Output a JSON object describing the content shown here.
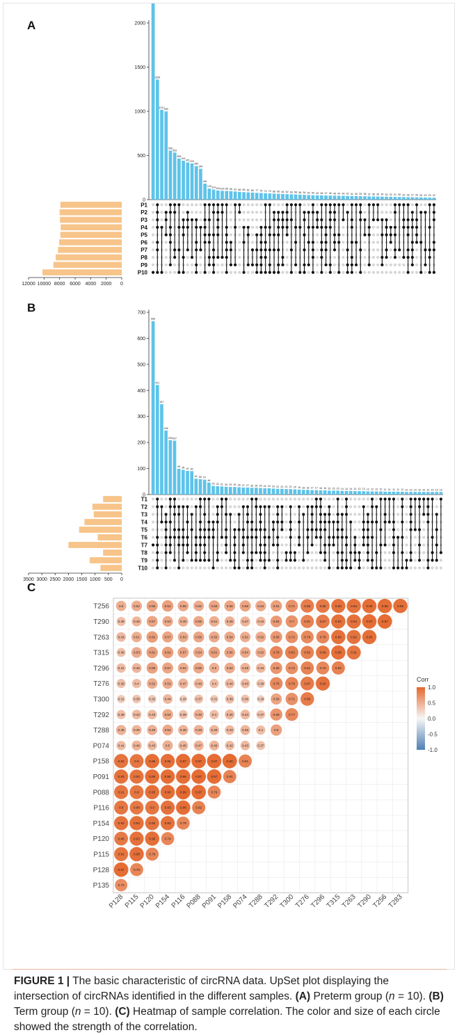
{
  "figure": {
    "panels": [
      "A",
      "B",
      "C"
    ]
  },
  "caption": {
    "label": "FIGURE 1 |",
    "text1": " The basic characteristic of circRNA data. UpSet plot displaying the intersection of circRNAs identified in the different samples. ",
    "a_label": "(A)",
    "text2": " Preterm group (",
    "n_a": "n",
    "text3": " = 10). ",
    "b_label": "(B)",
    "text4": " Term group (",
    "n_b": "n",
    "text5": " = 10). ",
    "c_label": "(C)",
    "text6": " Heatmap of sample correlation. The color and size of each circle showed the strength of the correlation."
  },
  "colors": {
    "bar": "#5ec3ea",
    "setbar": "#f7c48a",
    "dot_on": "#111111",
    "dot_off": "#d6d6d6",
    "corr_high": "#e4682e",
    "corr_mid": "#f6f6f6",
    "corr_low": "#4d7fb3"
  },
  "chart_data": [
    {
      "type": "bar",
      "panel": "A",
      "subtype": "upset",
      "ylim": [
        0,
        2000
      ],
      "yticks": [
        0,
        500,
        1000,
        1500,
        2000
      ],
      "values": [
        2444,
        1359,
        1017,
        999,
        555,
        533,
        465,
        441,
        421,
        410,
        380,
        349,
        181,
        125,
        114,
        104,
        100,
        98,
        96,
        92,
        88,
        85,
        82,
        80,
        77,
        75,
        72,
        70,
        68,
        66,
        64,
        62,
        60,
        58,
        56,
        54,
        52,
        50,
        49,
        48,
        47,
        46,
        45,
        44,
        43,
        42,
        41,
        40,
        39,
        38,
        37,
        36,
        35,
        34,
        33,
        32,
        31,
        30,
        29,
        28,
        27,
        26,
        25,
        24,
        23,
        22
      ],
      "value_labels": [
        "2444",
        "1359",
        "1017",
        "999",
        "555",
        "533",
        "465",
        "441",
        "421",
        "410",
        "380",
        "349",
        "181",
        "125",
        "114",
        "104",
        "100",
        "98",
        "96",
        "92",
        "88",
        "85",
        "82",
        "80",
        "77",
        "75",
        "72",
        "70",
        "68",
        "66",
        "64",
        "62",
        "60",
        "58",
        "56",
        "54",
        "52",
        "50",
        "49",
        "48",
        "47",
        "46",
        "45",
        "44",
        "43",
        "42",
        "41",
        "40",
        "39",
        "38",
        "37",
        "36",
        "35",
        "34",
        "33",
        "32",
        "31",
        "30",
        "29",
        "28",
        "27",
        "26",
        "25",
        "24",
        "23",
        "22"
      ],
      "sets": [
        "P1",
        "P2",
        "P3",
        "P4",
        "P5",
        "P6",
        "P7",
        "P8",
        "P9",
        "P10"
      ],
      "set_sizes": [
        7900,
        8000,
        7950,
        7850,
        7900,
        8050,
        8200,
        8500,
        8800,
        10200
      ],
      "set_xlim": [
        12000,
        0
      ],
      "set_xticks": [
        12000,
        10000,
        8000,
        6000,
        4000,
        2000,
        0
      ]
    },
    {
      "type": "bar",
      "panel": "B",
      "subtype": "upset",
      "ylim": [
        0,
        700
      ],
      "yticks": [
        0,
        100,
        200,
        300,
        400,
        500,
        600,
        700
      ],
      "values": [
        666,
        421,
        347,
        246,
        209,
        207,
        99,
        95,
        91,
        90,
        61,
        59,
        57,
        46,
        33,
        32,
        31,
        30,
        29,
        29,
        28,
        27,
        27,
        26,
        26,
        25,
        24,
        24,
        23,
        22,
        22,
        21,
        21,
        20,
        19,
        18,
        18,
        17,
        17,
        16,
        16,
        15,
        15,
        15,
        14,
        14,
        14,
        13,
        13,
        13,
        12,
        12,
        12,
        12,
        11,
        11,
        11,
        11,
        11,
        10,
        10,
        10,
        10,
        10,
        10,
        10,
        10,
        10
      ],
      "value_labels": [
        "666",
        "421",
        "347",
        "246",
        "209",
        "207",
        "99",
        "95",
        "91",
        "90",
        "61",
        "59",
        "57",
        "46",
        "33",
        "32",
        "31",
        "30",
        "29",
        "29",
        "28",
        "27",
        "27",
        "26",
        "26",
        "25",
        "24",
        "24",
        "23",
        "22",
        "22",
        "21",
        "21",
        "20",
        "19",
        "18",
        "18",
        "17",
        "17",
        "16",
        "16",
        "15",
        "15",
        "15",
        "14",
        "14",
        "14",
        "13",
        "13",
        "13",
        "12",
        "12",
        "12",
        "12",
        "11",
        "11",
        "11",
        "11",
        "11",
        "10",
        "10",
        "10",
        "10",
        "10",
        "10",
        "10",
        "10",
        "10"
      ],
      "sets": [
        "T1",
        "T2",
        "T3",
        "T4",
        "T5",
        "T6",
        "T7",
        "T8",
        "T9",
        "T10"
      ],
      "set_sizes": [
        700,
        1100,
        1050,
        1400,
        1600,
        900,
        2000,
        700,
        1200,
        800
      ],
      "set_xlim": [
        3500,
        0
      ],
      "set_xticks": [
        3500,
        3000,
        2500,
        2000,
        1500,
        1000,
        500,
        0
      ]
    },
    {
      "type": "heatmap",
      "panel": "C",
      "subtype": "correlation",
      "labels": [
        "P128",
        "P115",
        "P120",
        "P154",
        "P116",
        "P088",
        "P091",
        "P158",
        "P074",
        "T288",
        "T292",
        "T300",
        "T276",
        "T296",
        "T315",
        "T263",
        "T290",
        "T256",
        "T283"
      ],
      "y_labels": [
        "T256",
        "T290",
        "T263",
        "T315",
        "T296",
        "T276",
        "T300",
        "T292",
        "T288",
        "P074",
        "P158",
        "P091",
        "P088",
        "P116",
        "P154",
        "P120",
        "P115",
        "P128",
        "P135"
      ],
      "rows": [
        [
          0.73
        ],
        [
          0.97,
          0.79
        ],
        [
          0.91,
          0.95,
          0.79
        ],
        [
          0.88,
          0.93,
          0.95,
          0.79
        ],
        [
          0.92,
          0.94,
          0.92,
          0.93,
          0.79
        ],
        [
          0.9,
          0.88,
          0.9,
          0.93,
          0.96,
          0.82
        ],
        [
          0.91,
          0.9,
          0.95,
          0.96,
          0.99,
          0.97,
          0.79
        ],
        [
          0.93,
          0.92,
          0.96,
          0.96,
          0.96,
          0.97,
          0.97,
          0.81
        ],
        [
          0.92,
          0.9,
          0.96,
          0.95,
          0.97,
          0.97,
          0.97,
          0.98,
          0.81
        ],
        [
          0.41,
          0.46,
          0.43,
          0.5,
          0.45,
          0.47,
          0.46,
          0.42,
          0.43,
          0.37
        ],
        [
          0.48,
          0.46,
          0.49,
          0.54,
          0.48,
          0.48,
          0.46,
          0.43,
          0.46,
          0.4,
          0.6
        ],
        [
          0.39,
          0.42,
          0.43,
          0.54,
          0.38,
          0.49,
          0.4,
          0.45,
          0.44,
          0.37,
          0.69,
          0.77
        ],
        [
          0.31,
          0.35,
          0.32,
          0.44,
          0.28,
          0.37,
          0.31,
          0.39,
          0.36,
          0.28,
          0.58,
          0.71,
          0.86
        ],
        [
          0.39,
          0.4,
          0.52,
          0.53,
          0.47,
          0.46,
          0.4,
          0.44,
          0.43,
          0.36,
          0.76,
          0.79,
          0.87,
          0.93
        ],
        [
          0.41,
          0.45,
          0.59,
          0.57,
          0.52,
          0.56,
          0.5,
          0.52,
          0.48,
          0.44,
          0.68,
          0.72,
          0.81,
          0.78,
          0.82
        ],
        [
          0.38,
          0.53,
          0.61,
          0.62,
          0.57,
          0.54,
          0.61,
          0.56,
          0.54,
          0.52,
          0.78,
          0.82,
          0.82,
          0.89,
          0.95,
          0.91
        ],
        [
          0.43,
          0.51,
          0.62,
          0.57,
          0.53,
          0.56,
          0.55,
          0.54,
          0.52,
          0.52,
          0.66,
          0.72,
          0.76,
          0.78,
          0.94,
          0.92,
          0.95
        ],
        [
          0.39,
          0.46,
          0.57,
          0.53,
          0.49,
          0.55,
          0.51,
          0.49,
          0.47,
          0.44,
          0.64,
          0.7,
          0.81,
          0.87,
          0.94,
          0.94,
          0.97,
          0.97
        ],
        [
          0.5,
          0.52,
          0.59,
          0.61,
          0.55,
          0.52,
          0.58,
          0.56,
          0.58,
          0.54,
          0.61,
          0.71,
          0.85,
          0.88,
          0.93,
          0.94,
          0.96,
          0.96,
          0.95
        ]
      ],
      "legend_title": "Corr",
      "legend_ticks": [
        "1.0",
        "0.5",
        "0.0",
        "-0.5",
        "-1.0"
      ]
    }
  ]
}
